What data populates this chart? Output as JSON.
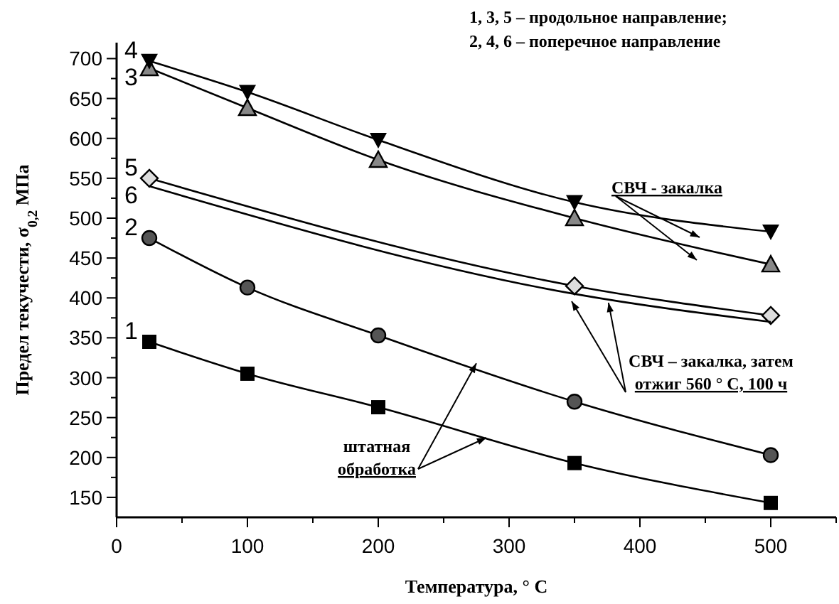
{
  "chart_data": {
    "type": "line",
    "xlabel": "Температура, ° С",
    "ylabel": "Предел текучести, σ$_{0,2}$ МПа",
    "xlim": [
      0,
      550
    ],
    "ylim": [
      125,
      720
    ],
    "xticks": [
      0,
      {
        "value": 50,
        "label": null
      },
      100,
      {
        "value": 150,
        "label": null
      },
      200,
      {
        "value": 250,
        "label": null
      },
      300,
      {
        "value": 350,
        "label": null
      },
      400,
      {
        "value": 450,
        "label": null
      },
      500,
      {
        "value": 550,
        "label": null
      }
    ],
    "yticks": [
      150,
      {
        "value": 175,
        "label": null
      },
      200,
      {
        "value": 225,
        "label": null
      },
      250,
      {
        "value": 275,
        "label": null
      },
      300,
      {
        "value": 325,
        "label": null
      },
      350,
      {
        "value": 375,
        "label": null
      },
      400,
      {
        "value": 425,
        "label": null
      },
      450,
      {
        "value": 475,
        "label": null
      },
      500,
      {
        "value": 525,
        "label": null
      },
      550,
      {
        "value": 575,
        "label": null
      },
      600,
      {
        "value": 625,
        "label": null
      },
      650,
      {
        "value": 675,
        "label": null
      },
      700
    ],
    "grid": false,
    "line_style": "solid",
    "series": [
      {
        "name": "1",
        "color": "#000000",
        "marker": "square",
        "x": [
          25,
          100,
          200,
          350,
          500
        ],
        "values": [
          345,
          305,
          263,
          193,
          143
        ]
      },
      {
        "name": "2",
        "color": "#000000",
        "marker": "circle",
        "x": [
          25,
          100,
          200,
          350,
          500
        ],
        "values": [
          475,
          413,
          353,
          270,
          203
        ]
      },
      {
        "name": "3",
        "color": "#000000",
        "marker": "triangle",
        "x": [
          25,
          100,
          200,
          350,
          500
        ],
        "values": [
          688,
          638,
          573,
          500,
          442
        ]
      },
      {
        "name": "4",
        "color": "#000000",
        "marker": "triangle-down",
        "x": [
          25,
          100,
          200,
          350,
          500
        ],
        "values": [
          697,
          658,
          598,
          520,
          483
        ]
      },
      {
        "name": "5",
        "color": "#000000",
        "marker": "diamond",
        "x": [
          25,
          350,
          500
        ],
        "values": [
          550,
          415,
          378
        ]
      },
      {
        "name": "6",
        "color": "#000000",
        "marker": "none",
        "x": [
          25,
          350,
          500
        ],
        "values": [
          540,
          405,
          370
        ]
      }
    ],
    "annotations": [
      "1, 3, 5 – продольное направление;",
      "2, 4, 6 – поперечное направление",
      "СВЧ - закалка",
      {
        "text": "СВЧ – закалка, затем отжиг 560 ° С, 100 ч",
        "x": 376,
        "y": 394
      },
      {
        "text": "штатная обработка",
        "x": 275,
        "y": 318
      }
    ]
  }
}
